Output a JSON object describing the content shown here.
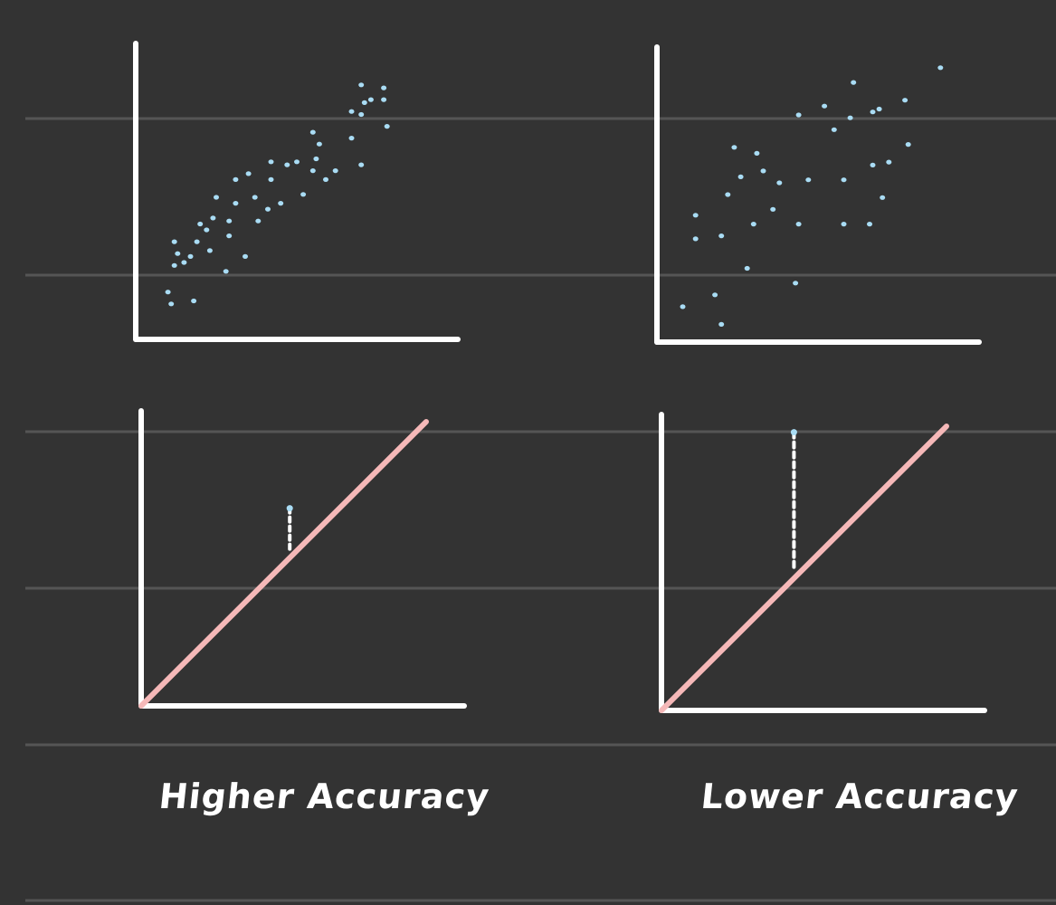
{
  "captions": {
    "left": "Higher   Accuracy",
    "right": "Lower Accuracy"
  },
  "colors": {
    "background": "#333333",
    "ruled_line": "#555555",
    "axis": "#ffffff",
    "point": "#a9dcf4",
    "regression_line": "#f5b8b8",
    "residual": "#ffffff"
  },
  "panels": {
    "high_scatter": {
      "kind": "scatter",
      "points": [
        [
          0.1,
          0.16
        ],
        [
          0.11,
          0.12
        ],
        [
          0.12,
          0.25
        ],
        [
          0.13,
          0.29
        ],
        [
          0.12,
          0.33
        ],
        [
          0.15,
          0.26
        ],
        [
          0.18,
          0.13
        ],
        [
          0.17,
          0.28
        ],
        [
          0.19,
          0.33
        ],
        [
          0.2,
          0.39
        ],
        [
          0.22,
          0.37
        ],
        [
          0.24,
          0.41
        ],
        [
          0.23,
          0.3
        ],
        [
          0.25,
          0.48
        ],
        [
          0.28,
          0.23
        ],
        [
          0.29,
          0.35
        ],
        [
          0.29,
          0.4
        ],
        [
          0.31,
          0.46
        ],
        [
          0.31,
          0.54
        ],
        [
          0.34,
          0.28
        ],
        [
          0.35,
          0.56
        ],
        [
          0.37,
          0.48
        ],
        [
          0.38,
          0.4
        ],
        [
          0.41,
          0.44
        ],
        [
          0.42,
          0.54
        ],
        [
          0.42,
          0.6
        ],
        [
          0.45,
          0.46
        ],
        [
          0.47,
          0.59
        ],
        [
          0.5,
          0.6
        ],
        [
          0.52,
          0.49
        ],
        [
          0.55,
          0.57
        ],
        [
          0.55,
          0.7
        ],
        [
          0.56,
          0.61
        ],
        [
          0.57,
          0.66
        ],
        [
          0.59,
          0.54
        ],
        [
          0.62,
          0.57
        ],
        [
          0.67,
          0.77
        ],
        [
          0.67,
          0.68
        ],
        [
          0.7,
          0.59
        ],
        [
          0.7,
          0.76
        ],
        [
          0.71,
          0.8
        ],
        [
          0.7,
          0.86
        ],
        [
          0.73,
          0.81
        ],
        [
          0.77,
          0.85
        ],
        [
          0.78,
          0.72
        ],
        [
          0.77,
          0.81
        ]
      ]
    },
    "low_scatter": {
      "kind": "scatter",
      "points": [
        [
          0.08,
          0.12
        ],
        [
          0.12,
          0.35
        ],
        [
          0.12,
          0.43
        ],
        [
          0.18,
          0.16
        ],
        [
          0.2,
          0.06
        ],
        [
          0.2,
          0.36
        ],
        [
          0.22,
          0.5
        ],
        [
          0.24,
          0.66
        ],
        [
          0.26,
          0.56
        ],
        [
          0.28,
          0.25
        ],
        [
          0.3,
          0.4
        ],
        [
          0.31,
          0.64
        ],
        [
          0.33,
          0.58
        ],
        [
          0.36,
          0.45
        ],
        [
          0.38,
          0.54
        ],
        [
          0.43,
          0.2
        ],
        [
          0.44,
          0.4
        ],
        [
          0.44,
          0.77
        ],
        [
          0.47,
          0.55
        ],
        [
          0.52,
          0.8
        ],
        [
          0.55,
          0.72
        ],
        [
          0.58,
          0.4
        ],
        [
          0.58,
          0.55
        ],
        [
          0.6,
          0.76
        ],
        [
          0.61,
          0.88
        ],
        [
          0.66,
          0.4
        ],
        [
          0.67,
          0.6
        ],
        [
          0.67,
          0.78
        ],
        [
          0.69,
          0.79
        ],
        [
          0.7,
          0.49
        ],
        [
          0.72,
          0.61
        ],
        [
          0.77,
          0.82
        ],
        [
          0.78,
          0.67
        ],
        [
          0.88,
          0.93
        ]
      ]
    },
    "high_fit": {
      "kind": "fit",
      "residual": {
        "x": 0.46,
        "y_point": 0.67,
        "y_fit": 0.53
      }
    },
    "low_fit": {
      "kind": "fit",
      "residual": {
        "x": 0.41,
        "y_point": 0.94,
        "y_fit": 0.48
      }
    }
  }
}
